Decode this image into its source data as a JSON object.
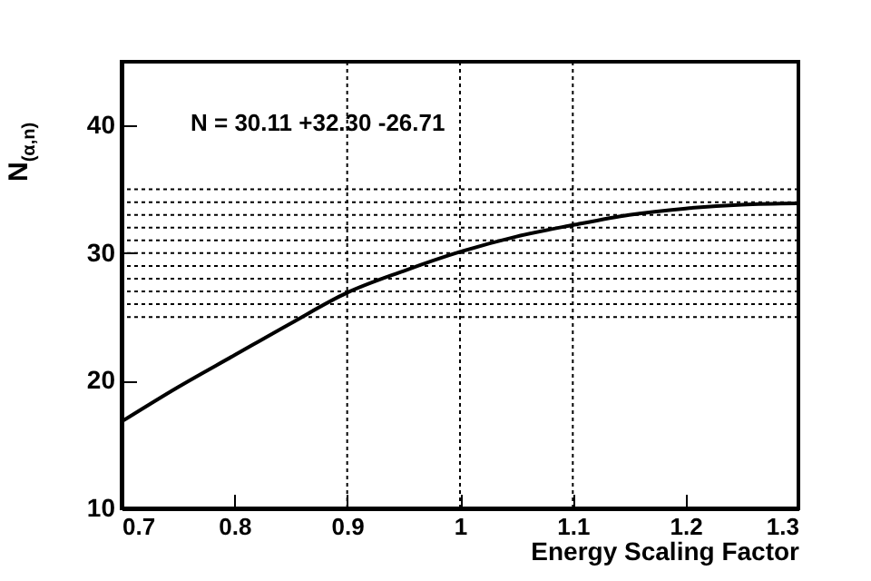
{
  "chart_data": {
    "type": "line",
    "xlabel": "Energy Scaling Factor",
    "ylabel": "N$_{(α,n)}$",
    "annotations": [
      "N = 30.11 +32.30 -26.71"
    ],
    "x": [
      0.7,
      0.75,
      0.8,
      0.85,
      0.9,
      0.95,
      1.0,
      1.05,
      1.1,
      1.15,
      1.2,
      1.25,
      1.3
    ],
    "series": [
      {
        "color": "#000000",
        "values": [
          16.8,
          19.5,
          22.0,
          24.5,
          26.9,
          28.6,
          30.1,
          31.3,
          32.2,
          33.0,
          33.5,
          33.8,
          33.9
        ]
      }
    ],
    "xlim": [
      0.7,
      1.3
    ],
    "xticks": [
      0.7,
      0.8,
      0.9,
      1,
      1.1,
      1.2,
      1.3
    ],
    "ylim": [
      10,
      45
    ],
    "yticks": [
      10,
      20,
      30,
      40
    ],
    "ref_lines": [
      {
        "axis": "x",
        "value": 0.9,
        "line_style": "dotted"
      },
      {
        "axis": "x",
        "value": 1.0,
        "line_style": "dotted"
      },
      {
        "axis": "x",
        "value": 1.1,
        "line_style": "dotted"
      },
      {
        "axis": "y",
        "value": 25,
        "line_style": "dotted"
      },
      {
        "axis": "y",
        "value": 26,
        "line_style": "dotted"
      },
      {
        "axis": "y",
        "value": 27,
        "line_style": "dotted"
      },
      {
        "axis": "y",
        "value": 28,
        "line_style": "dotted"
      },
      {
        "axis": "y",
        "value": 29,
        "line_style": "dotted"
      },
      {
        "axis": "y",
        "value": 30,
        "line_style": "dotted"
      },
      {
        "axis": "y",
        "value": 31,
        "line_style": "dotted"
      },
      {
        "axis": "y",
        "value": 32,
        "line_style": "dotted"
      },
      {
        "axis": "y",
        "value": 33,
        "line_style": "dotted"
      },
      {
        "axis": "y",
        "value": 34,
        "line_style": "dotted"
      },
      {
        "axis": "y",
        "value": 35,
        "line_style": "dotted"
      }
    ],
    "grid": false,
    "marker": "none",
    "line_style": "solid"
  }
}
